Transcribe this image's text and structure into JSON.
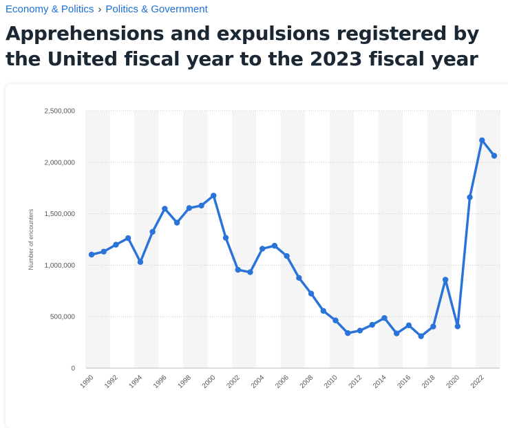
{
  "breadcrumb": {
    "items": [
      "Economy & Politics",
      "Politics & Government"
    ],
    "separator": "›"
  },
  "title": "Apprehensions and expulsions registered by the United fiscal year to the 2023 fiscal year",
  "chart_data": {
    "type": "line",
    "title": "",
    "xlabel": "",
    "ylabel": "Number of encounters",
    "x": [
      1990,
      1991,
      1992,
      1993,
      1994,
      1995,
      1996,
      1997,
      1998,
      1999,
      2000,
      2001,
      2002,
      2003,
      2004,
      2005,
      2006,
      2007,
      2008,
      2009,
      2010,
      2011,
      2012,
      2013,
      2014,
      2015,
      2016,
      2017,
      2018,
      2019,
      2020,
      2021,
      2022,
      2023
    ],
    "series": [
      {
        "name": "Apprehensions and expulsions",
        "values": [
          1103000,
          1132000,
          1199000,
          1263000,
          1031000,
          1324000,
          1549000,
          1413000,
          1555000,
          1579000,
          1676000,
          1266000,
          955000,
          932000,
          1160000,
          1189000,
          1089000,
          877000,
          724000,
          556000,
          463000,
          340000,
          365000,
          421000,
          487000,
          337000,
          416000,
          310000,
          404000,
          859000,
          406000,
          1660000,
          2214000,
          2063000
        ]
      }
    ],
    "x_tick_labels": [
      "1990",
      "1992",
      "1994",
      "1996",
      "1998",
      "2000",
      "2002",
      "2004",
      "2006",
      "2008",
      "2010",
      "2012",
      "2014",
      "2016",
      "2018",
      "2020",
      "2022"
    ],
    "y_ticks": [
      0,
      500000,
      1000000,
      1500000,
      2000000,
      2500000
    ],
    "y_tick_labels": [
      "0",
      "500,000",
      "1,000,000",
      "1,500,000",
      "2,000,000",
      "2,500,000"
    ],
    "ylim": [
      0,
      2500000
    ],
    "xlim": [
      1990,
      2023
    ],
    "grid": true,
    "line_color": "#2a73d8",
    "band_color": "#f5f5f5"
  }
}
